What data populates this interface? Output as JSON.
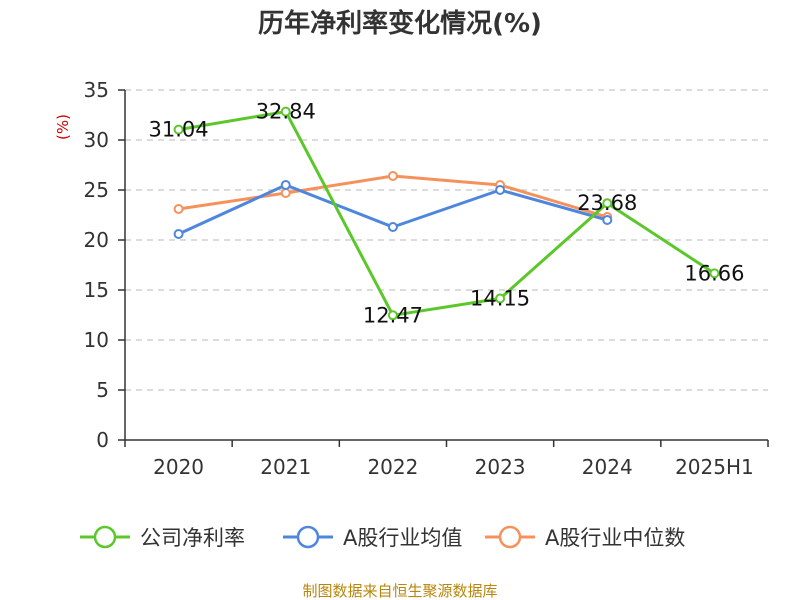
{
  "chart_data": {
    "type": "line",
    "title": "历年净利率变化情况(%)",
    "ylabel": "(%)",
    "ylim": [
      0,
      35
    ],
    "yticks": [
      0,
      5,
      10,
      15,
      20,
      25,
      30,
      35
    ],
    "grid": true,
    "legend_position": "bottom",
    "categories": [
      "2020",
      "2021",
      "2022",
      "2023",
      "2024",
      "2025H1"
    ],
    "series": [
      {
        "name": "公司净利率",
        "color": "#5bc72a",
        "values": [
          31.04,
          32.84,
          12.47,
          14.15,
          23.68,
          16.66
        ],
        "labels": [
          "31.04",
          "32.84",
          "12.47",
          "14.15",
          "23.68",
          "16.66"
        ]
      },
      {
        "name": "A股行业均值",
        "color": "#4e86de",
        "values": [
          20.6,
          25.5,
          21.3,
          25.0,
          22.0,
          null
        ]
      },
      {
        "name": "A股行业中位数",
        "color": "#f5915a",
        "values": [
          23.1,
          24.7,
          26.4,
          25.5,
          22.3,
          null
        ]
      }
    ],
    "source": "制图数据来自恒生聚源数据库"
  }
}
